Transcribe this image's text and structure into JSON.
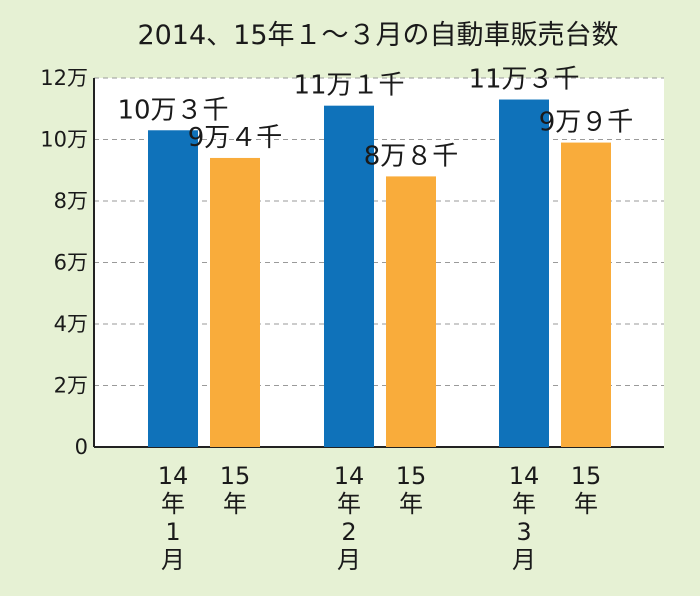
{
  "chart_data": {
    "type": "bar",
    "title": "2014、15年１～３月の自動車販売台数",
    "xlabel": "",
    "ylabel": "",
    "ylim": [
      0,
      120000
    ],
    "y_ticks": [
      {
        "value": 0,
        "label": "0"
      },
      {
        "value": 20000,
        "label": "2万"
      },
      {
        "value": 40000,
        "label": "4万"
      },
      {
        "value": 60000,
        "label": "6万"
      },
      {
        "value": 80000,
        "label": "8万"
      },
      {
        "value": 100000,
        "label": "10万"
      },
      {
        "value": 120000,
        "label": "12万"
      }
    ],
    "grid": true,
    "groups": [
      {
        "bars": [
          {
            "category_lines": [
              "14",
              "年",
              "1",
              "月"
            ],
            "value": 103000,
            "label": "10万３千",
            "color": "#0f72ba"
          },
          {
            "category_lines": [
              "15",
              "年"
            ],
            "value": 94000,
            "label": "9万４千",
            "color": "#f9ac3b"
          }
        ]
      },
      {
        "bars": [
          {
            "category_lines": [
              "14",
              "年",
              "2",
              "月"
            ],
            "value": 111000,
            "label": "11万１千",
            "color": "#0f72ba"
          },
          {
            "category_lines": [
              "15",
              "年"
            ],
            "value": 88000,
            "label": "8万８千",
            "color": "#f9ac3b"
          }
        ]
      },
      {
        "bars": [
          {
            "category_lines": [
              "14",
              "年",
              "3",
              "月"
            ],
            "value": 113000,
            "label": "11万３千",
            "color": "#0f72ba"
          },
          {
            "category_lines": [
              "15",
              "年"
            ],
            "value": 99000,
            "label": "9万９千",
            "color": "#f9ac3b"
          }
        ]
      }
    ],
    "colors": {
      "background": "#e6f1d4",
      "plot_background": "#ffffff",
      "series_2014": "#0f72ba",
      "series_2015": "#f9ac3b"
    }
  }
}
